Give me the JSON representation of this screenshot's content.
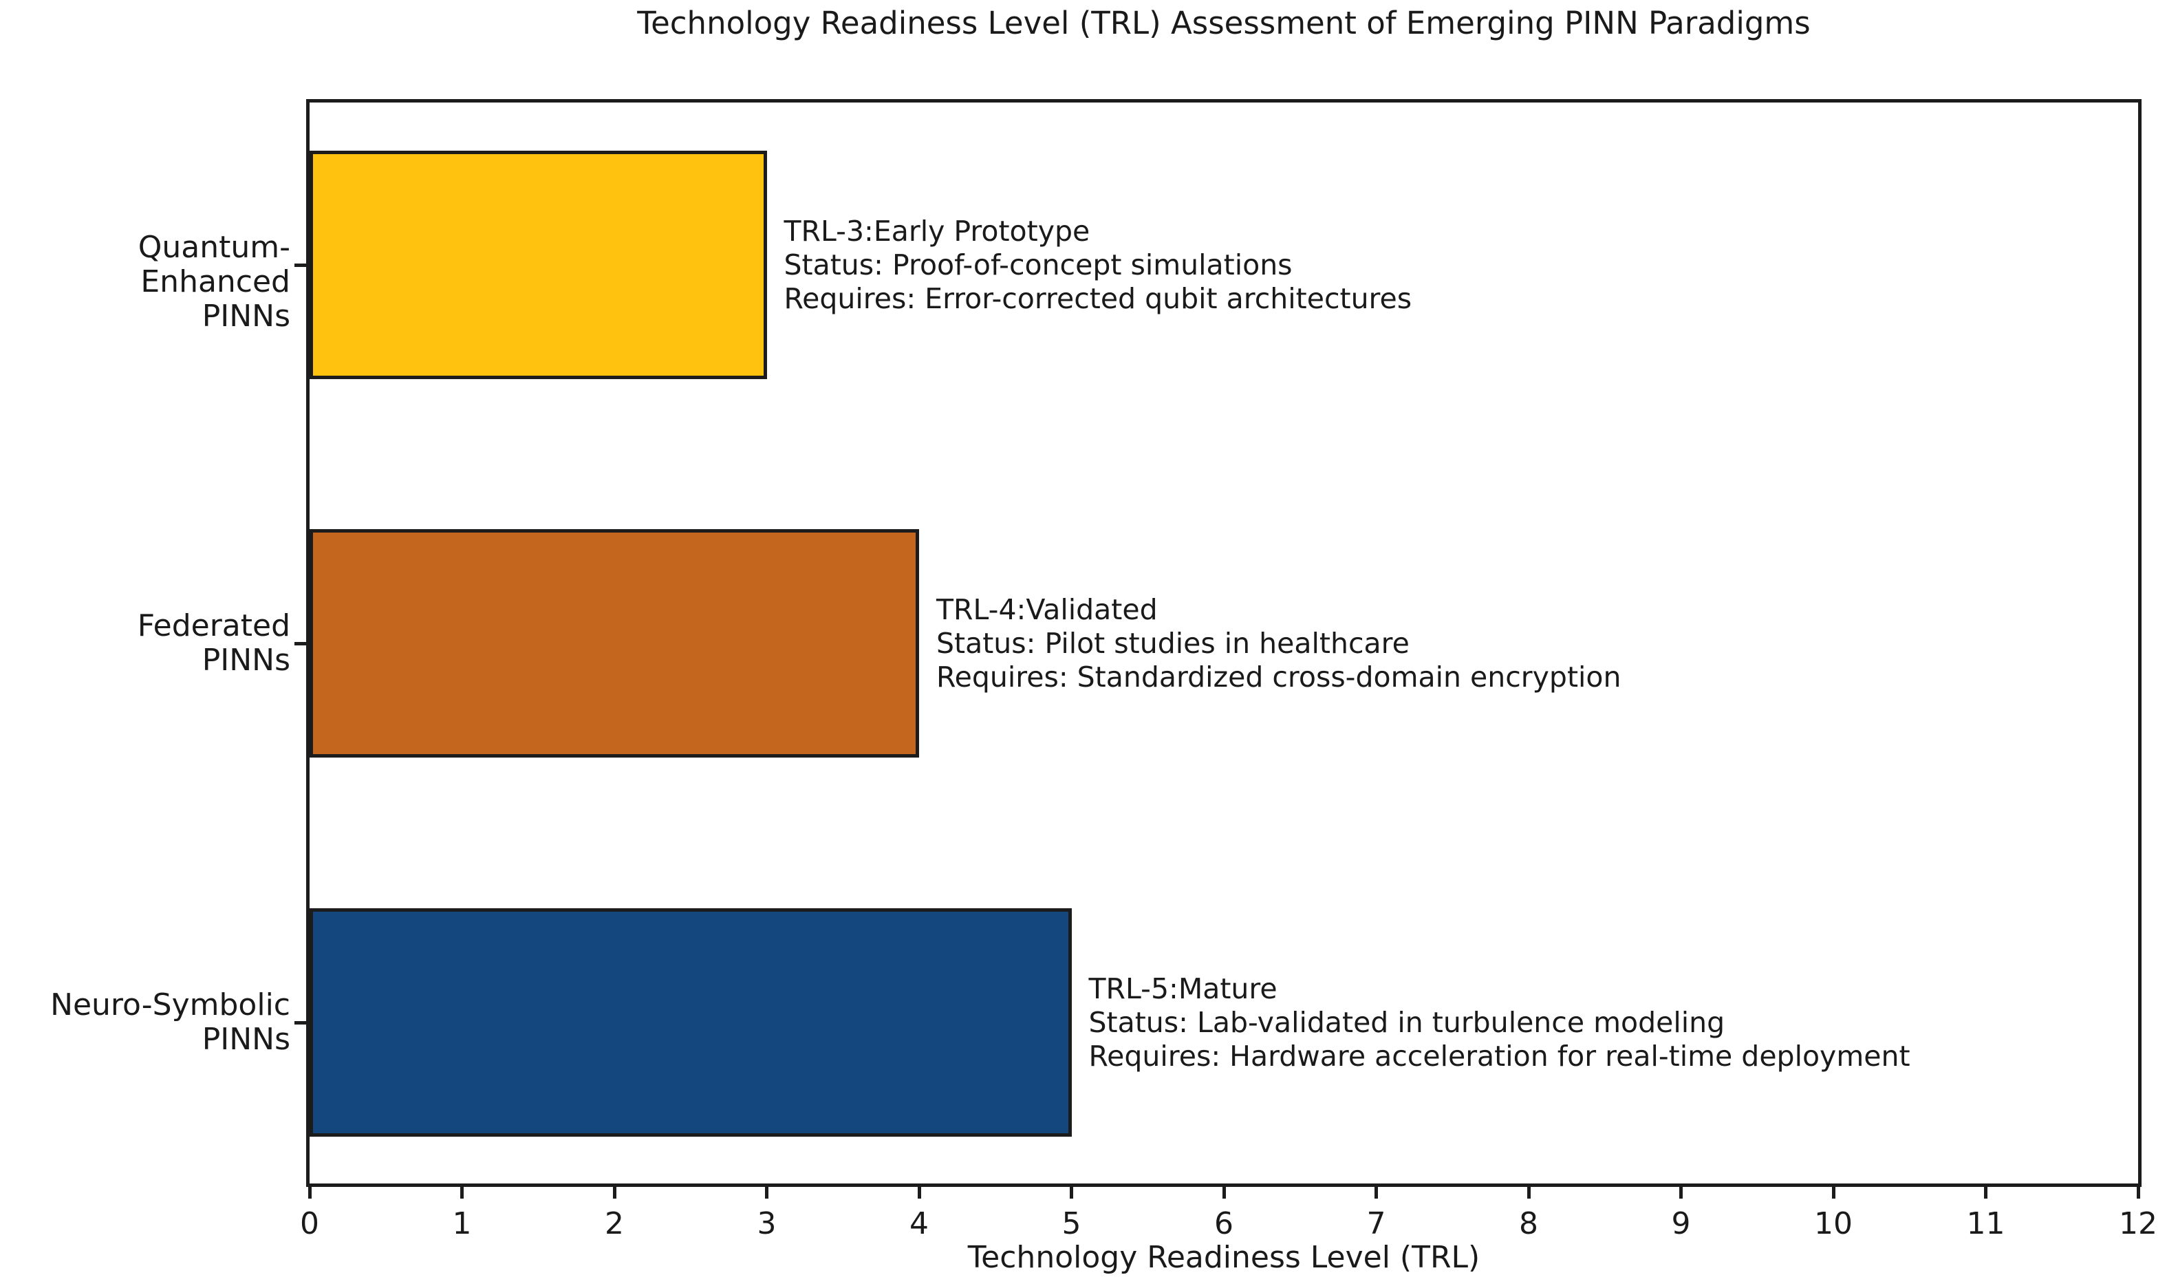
{
  "chart_data": {
    "type": "bar",
    "orientation": "horizontal",
    "title": "Technology Readiness Level (TRL) Assessment of Emerging PINN Paradigms",
    "xlabel": "Technology Readiness Level (TRL)",
    "ylabel": "",
    "xlim": [
      0,
      12
    ],
    "xticks": [
      0,
      1,
      2,
      3,
      4,
      5,
      6,
      7,
      8,
      9,
      10,
      11,
      12
    ],
    "grid": false,
    "legend": null,
    "background_color": "#ffffff",
    "edge_color": "#1c1c1c",
    "categories": [
      "Quantum-Enhanced\nPINNs",
      "Federated\nPINNs",
      "Neuro-Symbolic\nPINNs"
    ],
    "values": [
      3,
      4,
      5
    ],
    "bar_colors": [
      "#FFC20E",
      "#C5661F",
      "#14477E"
    ],
    "annotations": [
      {
        "lines": [
          "TRL-3:Early Prototype",
          "Status: Proof-of-concept simulations",
          "Requires: Error-corrected qubit architectures"
        ]
      },
      {
        "lines": [
          "TRL-4:Validated",
          "Status: Pilot studies in healthcare",
          "Requires: Standardized cross-domain encryption"
        ]
      },
      {
        "lines": [
          "TRL-5:Mature",
          "Status: Lab-validated in turbulence modeling",
          "Requires: Hardware acceleration for real-time deployment"
        ]
      }
    ]
  }
}
